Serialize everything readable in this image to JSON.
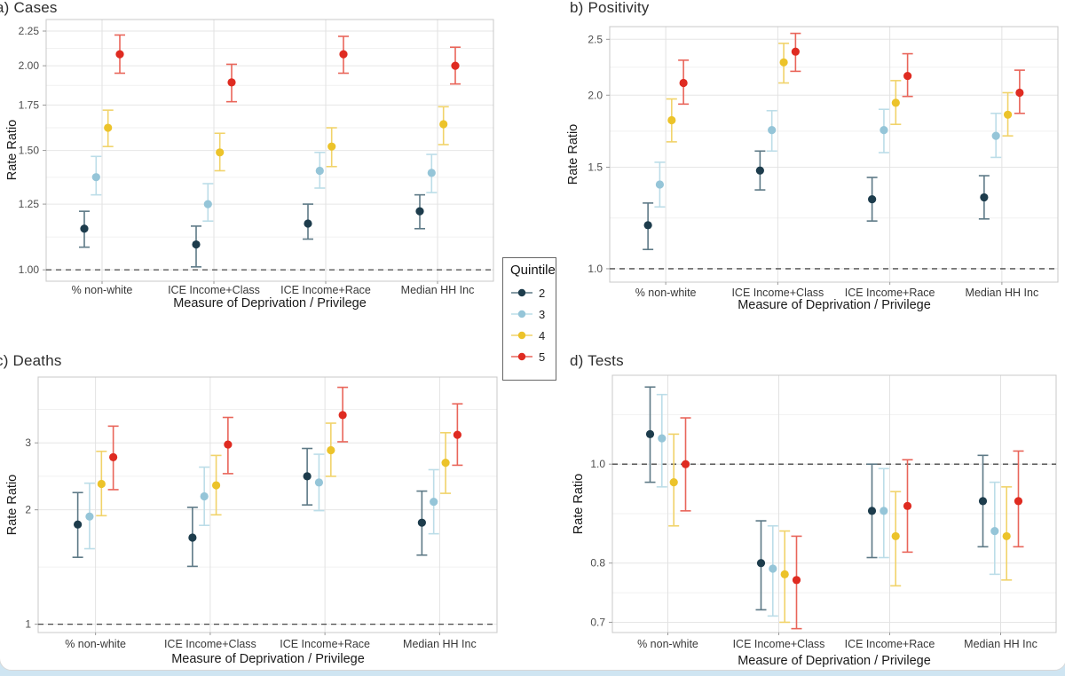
{
  "figure": {
    "footer_strip_color": "#cfe5f2",
    "card_color": "#ffffff"
  },
  "legend": {
    "title": "Quintile",
    "entries": [
      {
        "label": "2",
        "dot_color": "#1d3c4c",
        "bar_color": "#5d7986"
      },
      {
        "label": "3",
        "dot_color": "#95c5d8",
        "bar_color": "#bcdde8"
      },
      {
        "label": "4",
        "dot_color": "#ecc32a",
        "bar_color": "#f1d36a"
      },
      {
        "label": "5",
        "dot_color": "#df2b21",
        "bar_color": "#e9655a"
      }
    ]
  },
  "chart_data": [
    {
      "id": "a",
      "title": "a) Cases",
      "type": "scatter",
      "ylabel": "Rate Ratio",
      "xlabel": "Measure of Deprivation / Privilege",
      "y_scale": "log",
      "y_domain": [
        0.962,
        2.34
      ],
      "y_tick_values": [
        1.0,
        1.25,
        1.5,
        1.75,
        2.0,
        2.25
      ],
      "y_tick_labels": [
        "1.00",
        "1.25",
        "1.50",
        "1.75",
        "2.00",
        "2.25"
      ],
      "ref_line": 1.0,
      "grid": true,
      "legend_position": "center-figure",
      "categories": [
        "% non-white",
        "ICE Income+Class",
        "ICE Income+Race",
        "Median HH Inc"
      ],
      "series": [
        {
          "name": "2",
          "values": [
            1.15,
            1.09,
            1.17,
            1.22
          ],
          "ci_low": [
            1.08,
            1.01,
            1.11,
            1.15
          ],
          "ci_high": [
            1.22,
            1.16,
            1.25,
            1.29
          ]
        },
        {
          "name": "3",
          "values": [
            1.37,
            1.25,
            1.4,
            1.39
          ],
          "ci_low": [
            1.29,
            1.18,
            1.32,
            1.3
          ],
          "ci_high": [
            1.47,
            1.34,
            1.49,
            1.48
          ]
        },
        {
          "name": "4",
          "values": [
            1.62,
            1.49,
            1.52,
            1.64
          ],
          "ci_low": [
            1.52,
            1.4,
            1.42,
            1.53
          ],
          "ci_high": [
            1.72,
            1.59,
            1.62,
            1.74
          ]
        },
        {
          "name": "5",
          "values": [
            2.08,
            1.89,
            2.08,
            2.0
          ],
          "ci_low": [
            1.95,
            1.77,
            1.95,
            1.88
          ],
          "ci_high": [
            2.22,
            2.01,
            2.21,
            2.13
          ]
        }
      ]
    },
    {
      "id": "b",
      "title": "b) Positivity",
      "type": "scatter",
      "ylabel": "Rate Ratio",
      "xlabel": "Measure of Deprivation / Privilege",
      "y_scale": "log",
      "y_domain": [
        0.948,
        2.63
      ],
      "y_tick_values": [
        1.0,
        1.5,
        2.0,
        2.5
      ],
      "y_tick_labels": [
        "1.0",
        "1.5",
        "2.0",
        "2.5"
      ],
      "ref_line": 1.0,
      "grid": true,
      "categories": [
        "% non-white",
        "ICE Income+Class",
        "ICE Income+Race",
        "Median HH Inc"
      ],
      "series": [
        {
          "name": "2",
          "values": [
            1.19,
            1.48,
            1.32,
            1.33
          ],
          "ci_low": [
            1.08,
            1.37,
            1.21,
            1.22
          ],
          "ci_high": [
            1.3,
            1.6,
            1.44,
            1.45
          ]
        },
        {
          "name": "3",
          "values": [
            1.4,
            1.74,
            1.74,
            1.7
          ],
          "ci_low": [
            1.28,
            1.6,
            1.59,
            1.56
          ],
          "ci_high": [
            1.53,
            1.88,
            1.89,
            1.86
          ]
        },
        {
          "name": "4",
          "values": [
            1.81,
            2.28,
            1.94,
            1.85
          ],
          "ci_low": [
            1.66,
            2.1,
            1.78,
            1.7
          ],
          "ci_high": [
            1.97,
            2.46,
            2.12,
            2.02
          ]
        },
        {
          "name": "5",
          "values": [
            2.1,
            2.38,
            2.16,
            2.02
          ],
          "ci_low": [
            1.93,
            2.2,
            1.99,
            1.86
          ],
          "ci_high": [
            2.3,
            2.56,
            2.36,
            2.21
          ]
        }
      ]
    },
    {
      "id": "c",
      "title": "c) Deaths",
      "type": "scatter",
      "ylabel": "Rate Ratio",
      "xlabel": "Measure of Deprivation / Privilege",
      "y_scale": "log",
      "y_domain": [
        0.951,
        4.47
      ],
      "y_tick_values": [
        1,
        2,
        3
      ],
      "y_tick_labels": [
        "1",
        "2",
        "3"
      ],
      "ref_line": 1.0,
      "grid": true,
      "categories": [
        "% non-white",
        "ICE Income+Class",
        "ICE Income+Race",
        "Median HH Inc"
      ],
      "series": [
        {
          "name": "2",
          "values": [
            1.83,
            1.69,
            2.45,
            1.85
          ],
          "ci_low": [
            1.5,
            1.42,
            2.06,
            1.52
          ],
          "ci_high": [
            2.22,
            2.03,
            2.9,
            2.24
          ]
        },
        {
          "name": "3",
          "values": [
            1.92,
            2.17,
            2.36,
            2.1
          ],
          "ci_low": [
            1.58,
            1.82,
            1.99,
            1.73
          ],
          "ci_high": [
            2.35,
            2.59,
            2.8,
            2.55
          ]
        },
        {
          "name": "4",
          "values": [
            2.34,
            2.32,
            2.87,
            2.66
          ],
          "ci_low": [
            1.93,
            1.94,
            2.45,
            2.21
          ],
          "ci_high": [
            2.85,
            2.78,
            3.38,
            3.19
          ]
        },
        {
          "name": "5",
          "values": [
            2.75,
            2.97,
            3.55,
            3.15
          ],
          "ci_low": [
            2.26,
            2.49,
            3.02,
            2.62
          ],
          "ci_high": [
            3.32,
            3.5,
            4.2,
            3.8
          ]
        }
      ]
    },
    {
      "id": "d",
      "title": "d) Tests",
      "type": "scatter",
      "ylabel": "Rate Ratio",
      "xlabel": "Measure of Deprivation / Privilege",
      "y_scale": "log",
      "y_domain": [
        0.684,
        1.222
      ],
      "y_tick_values": [
        0.7,
        0.8,
        1.0
      ],
      "y_tick_labels": [
        "0.7",
        "0.8",
        "1.0"
      ],
      "ref_line": 1.0,
      "grid": true,
      "categories": [
        "% non-white",
        "ICE Income+Class",
        "ICE Income+Race",
        "Median HH Inc"
      ],
      "series": [
        {
          "name": "2",
          "values": [
            1.07,
            0.8,
            0.9,
            0.92
          ],
          "ci_low": [
            0.96,
            0.72,
            0.81,
            0.83
          ],
          "ci_high": [
            1.19,
            0.88,
            1.0,
            1.02
          ]
        },
        {
          "name": "3",
          "values": [
            1.06,
            0.79,
            0.9,
            0.86
          ],
          "ci_low": [
            0.95,
            0.71,
            0.81,
            0.78
          ],
          "ci_high": [
            1.17,
            0.87,
            0.99,
            0.96
          ]
        },
        {
          "name": "4",
          "values": [
            0.96,
            0.78,
            0.85,
            0.85
          ],
          "ci_low": [
            0.87,
            0.7,
            0.76,
            0.77
          ],
          "ci_high": [
            1.07,
            0.86,
            0.94,
            0.95
          ]
        },
        {
          "name": "5",
          "values": [
            1.0,
            0.77,
            0.91,
            0.92
          ],
          "ci_low": [
            0.9,
            0.69,
            0.82,
            0.83
          ],
          "ci_high": [
            1.11,
            0.85,
            1.01,
            1.03
          ]
        }
      ]
    }
  ]
}
